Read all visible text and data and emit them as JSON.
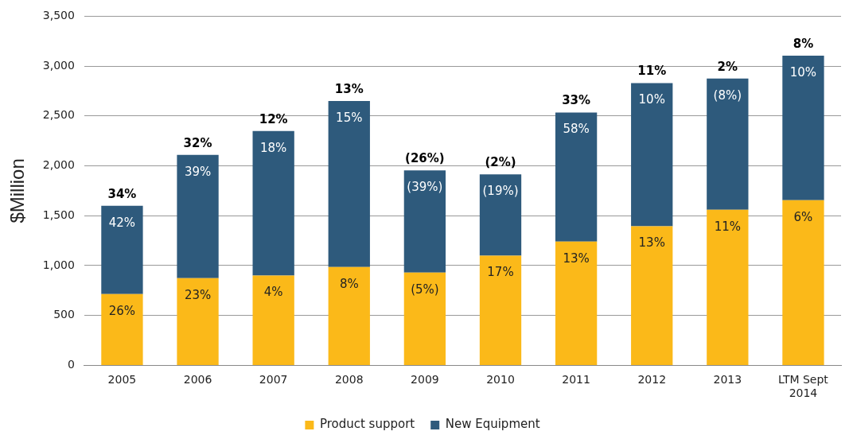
{
  "chart_data": {
    "type": "bar",
    "stacked": true,
    "ylabel": "$Million",
    "categories": [
      "2005",
      "2006",
      "2007",
      "2008",
      "2009",
      "2010",
      "2011",
      "2012",
      "2013",
      "LTM Sept 2014"
    ],
    "series": [
      {
        "name": "Product support",
        "color": "#fbb919",
        "values": [
          715,
          875,
          900,
          985,
          930,
          1100,
          1240,
          1395,
          1560,
          1655
        ]
      },
      {
        "name": "New Equipment",
        "color": "#2e5a7c",
        "values": [
          885,
          1235,
          1450,
          1665,
          1025,
          815,
          1295,
          1435,
          1315,
          1450
        ]
      }
    ],
    "annotations": [
      {
        "text": "26%",
        "x": "2005",
        "y": 715
      },
      {
        "text": "23%",
        "x": "2006",
        "y": 875
      },
      {
        "text": "4%",
        "x": "2007",
        "y": 900
      },
      {
        "text": "8%",
        "x": "2008",
        "y": 985
      },
      {
        "text": "(5%)",
        "x": "2009",
        "y": 930
      },
      {
        "text": "17%",
        "x": "2010",
        "y": 1100
      },
      {
        "text": "13%",
        "x": "2011",
        "y": 1240
      },
      {
        "text": "13%",
        "x": "2012",
        "y": 1395
      },
      {
        "text": "11%",
        "x": "2013",
        "y": 1560
      },
      {
        "text": "6%",
        "x": "LTM Sept 2014",
        "y": 1655
      },
      {
        "text": "42%",
        "x": "2005",
        "y": 1600
      },
      {
        "text": "39%",
        "x": "2006",
        "y": 2110
      },
      {
        "text": "18%",
        "x": "2007",
        "y": 2350
      },
      {
        "text": "15%",
        "x": "2008",
        "y": 2650
      },
      {
        "text": "(39%)",
        "x": "2009",
        "y": 1955
      },
      {
        "text": "(19%)",
        "x": "2010",
        "y": 1915
      },
      {
        "text": "58%",
        "x": "2011",
        "y": 2535
      },
      {
        "text": "10%",
        "x": "2012",
        "y": 2830
      },
      {
        "text": "(8%)",
        "x": "2013",
        "y": 2875
      },
      {
        "text": "10%",
        "x": "LTM Sept 2014",
        "y": 3105
      },
      {
        "text": "34%",
        "x": "2005",
        "y": 1600
      },
      {
        "text": "32%",
        "x": "2006",
        "y": 2110
      },
      {
        "text": "12%",
        "x": "2007",
        "y": 2350
      },
      {
        "text": "13%",
        "x": "2008",
        "y": 2650
      },
      {
        "text": "(26%)",
        "x": "2009",
        "y": 1955
      },
      {
        "text": "(2%)",
        "x": "2010",
        "y": 1915
      },
      {
        "text": "33%",
        "x": "2011",
        "y": 2535
      },
      {
        "text": "11%",
        "x": "2012",
        "y": 2830
      },
      {
        "text": "2%",
        "x": "2013",
        "y": 2875
      },
      {
        "text": "8%",
        "x": "LTM Sept 2014",
        "y": 3105
      }
    ],
    "ylim": [
      0,
      3500
    ],
    "yticks": [
      0,
      500,
      {
        "value": 1000,
        "label": "1,000"
      },
      {
        "value": 1500,
        "label": "1,500"
      },
      {
        "value": 2000,
        "label": "2,000"
      },
      {
        "value": 2500,
        "label": "2,500"
      },
      {
        "value": 3000,
        "label": "3,000"
      },
      {
        "value": 3500,
        "label": "3,500"
      }
    ],
    "grid": "y",
    "legend": "bottom"
  }
}
